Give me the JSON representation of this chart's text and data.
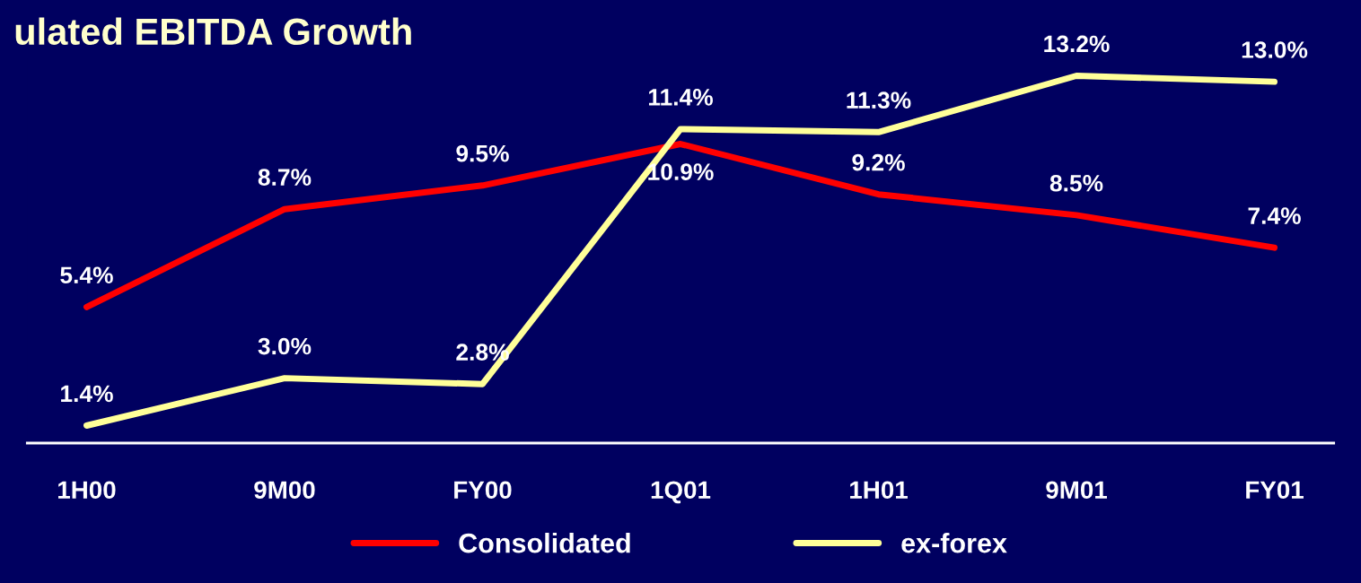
{
  "chart_data": {
    "type": "line",
    "title": "ulated EBITDA Growth",
    "categories": [
      "1H00",
      "9M00",
      "FY00",
      "1Q01",
      "1H01",
      "9M01",
      "FY01"
    ],
    "series": [
      {
        "name": "Consolidated",
        "color": "#ff0000",
        "values": [
          5.4,
          8.7,
          9.5,
          10.9,
          9.2,
          8.5,
          7.4
        ],
        "value_labels": [
          "5.4%",
          "8.7%",
          "9.5%",
          "10.9%",
          "9.2%",
          "8.5%",
          "7.4%"
        ]
      },
      {
        "name": "ex-forex",
        "color": "#ffff99",
        "values": [
          1.4,
          3.0,
          2.8,
          11.4,
          11.3,
          13.2,
          13.0
        ],
        "value_labels": [
          "1.4%",
          "3.0%",
          "2.8%",
          "11.4%",
          "11.3%",
          "13.2%",
          "13.0%"
        ]
      }
    ],
    "legend": "bottom",
    "grid": false,
    "marker": "none",
    "line_style": "solid",
    "tick_labels": "x"
  }
}
